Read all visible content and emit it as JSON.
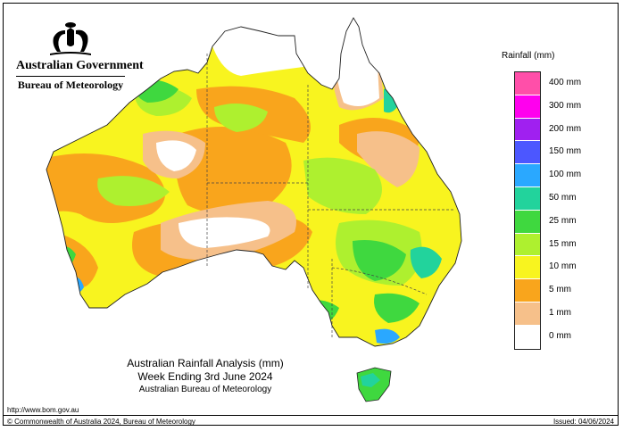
{
  "header": {
    "government": "Australian Government",
    "agency": "Bureau of Meteorology"
  },
  "legend": {
    "title": "Rainfall (mm)",
    "classes": [
      {
        "label": "400 mm",
        "color": "#ff4fa9"
      },
      {
        "label": "300 mm",
        "color": "#ff00ee"
      },
      {
        "label": "200 mm",
        "color": "#a020f0"
      },
      {
        "label": "150 mm",
        "color": "#4c57ff"
      },
      {
        "label": "100 mm",
        "color": "#2aa8ff"
      },
      {
        "label": "50 mm",
        "color": "#22d39c"
      },
      {
        "label": "25 mm",
        "color": "#3fd83f"
      },
      {
        "label": "15 mm",
        "color": "#aef02f"
      },
      {
        "label": "10 mm",
        "color": "#f8f41f"
      },
      {
        "label": "5 mm",
        "color": "#f9a51c"
      },
      {
        "label": "1 mm",
        "color": "#f6c08a"
      },
      {
        "label": "0 mm",
        "color": "#ffffff"
      }
    ]
  },
  "title": {
    "line1": "Australian Rainfall Analysis (mm)",
    "line2": "Week Ending 3rd June 2024",
    "line3": "Australian Bureau of Meteorology"
  },
  "footer": {
    "url": "http://www.bom.gov.au",
    "copyright": "© Commonwealth of Australia 2024, Bureau of Meteorology",
    "issued": "Issued: 04/06/2024"
  }
}
